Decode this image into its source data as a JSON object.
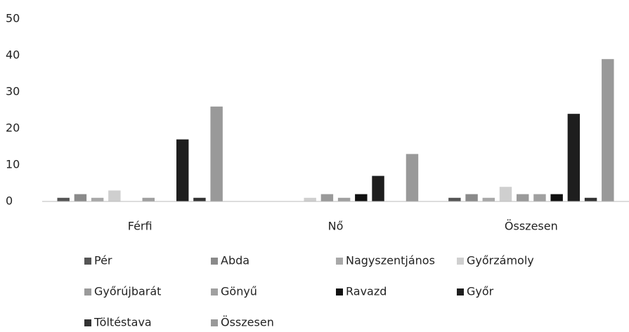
{
  "chart_data": {
    "type": "bar",
    "categories": [
      "Férfi",
      "Nő",
      "Összesen"
    ],
    "series": [
      {
        "name": "Pér",
        "color": "#555555",
        "values": [
          1,
          0,
          1
        ]
      },
      {
        "name": "Abda",
        "color": "#8a8a8a",
        "values": [
          2,
          0,
          2
        ]
      },
      {
        "name": "Nagyszentjános",
        "color": "#a8a8a8",
        "values": [
          1,
          0,
          1
        ]
      },
      {
        "name": "Győrzámoly",
        "color": "#cfcfcf",
        "values": [
          3,
          1,
          4
        ]
      },
      {
        "name": "Győrújbarát",
        "color": "#9a9a9a",
        "values": [
          0,
          2,
          2
        ]
      },
      {
        "name": "Gönyű",
        "color": "#a0a0a0",
        "values": [
          1,
          1,
          2
        ]
      },
      {
        "name": "Ravazd",
        "color": "#111111",
        "values": [
          0,
          2,
          2
        ]
      },
      {
        "name": "Győr",
        "color": "#1e1e1e",
        "values": [
          17,
          7,
          24
        ]
      },
      {
        "name": "Töltéstava",
        "color": "#333333",
        "values": [
          1,
          0,
          1
        ]
      },
      {
        "name": "Összesen",
        "color": "#999999",
        "values": [
          26,
          13,
          39
        ]
      }
    ],
    "ylim": [
      0,
      50
    ],
    "yticks": [
      0,
      10,
      20,
      30,
      40,
      50
    ],
    "grid": false,
    "legend": "bottom"
  }
}
